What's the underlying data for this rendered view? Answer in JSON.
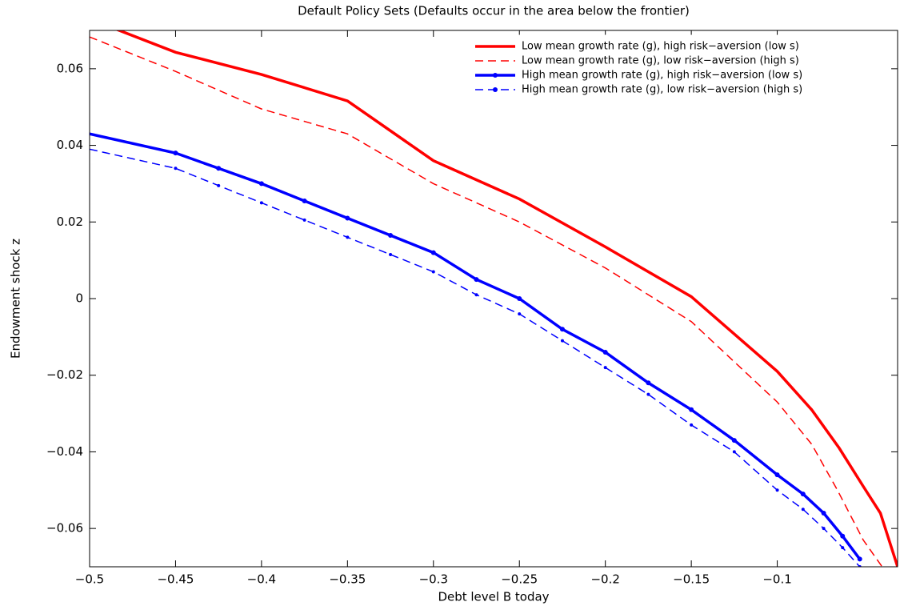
{
  "chart_data": {
    "type": "line",
    "title": "Default Policy Sets (Defaults occur in the area below the frontier)",
    "xlabel": "Debt level B today",
    "ylabel": "Endowment shock z",
    "xlim": [
      -0.5,
      -0.03
    ],
    "ylim": [
      -0.07,
      0.07
    ],
    "xticks": [
      {
        "value": -0.5,
        "label": "−0.5"
      },
      {
        "value": -0.45,
        "label": "−0.45"
      },
      {
        "value": -0.4,
        "label": "−0.4"
      },
      {
        "value": -0.35,
        "label": "−0.35"
      },
      {
        "value": -0.3,
        "label": "−0.3"
      },
      {
        "value": -0.25,
        "label": "−0.25"
      },
      {
        "value": -0.2,
        "label": "−0.2"
      },
      {
        "value": -0.15,
        "label": "−0.15"
      },
      {
        "value": -0.1,
        "label": "−0.1"
      }
    ],
    "yticks": [
      {
        "value": -0.06,
        "label": "−0.06"
      },
      {
        "value": -0.04,
        "label": "−0.04"
      },
      {
        "value": -0.02,
        "label": "−0.02"
      },
      0,
      0.02,
      0.04,
      0.06
    ],
    "legend": "upper right",
    "series": [
      {
        "name": "Low mean growth rate (g), high risk−aversion (low s)",
        "color": "#ff0000",
        "dash": false,
        "marker": false,
        "x": [
          -0.5,
          -0.45,
          -0.4,
          -0.35,
          -0.3,
          -0.25,
          -0.2,
          -0.15,
          -0.1,
          -0.08,
          -0.064,
          -0.05,
          -0.04,
          -0.03
        ],
        "values": [
          0.073,
          0.0643,
          0.0585,
          0.0516,
          0.036,
          0.026,
          0.0135,
          0.0005,
          -0.019,
          -0.029,
          -0.039,
          -0.049,
          -0.056,
          -0.07
        ]
      },
      {
        "name": "Low mean growth rate (g), low risk−aversion (high s)",
        "color": "#ff0000",
        "dash": true,
        "marker": false,
        "x": [
          -0.5,
          -0.45,
          -0.4,
          -0.35,
          -0.3,
          -0.25,
          -0.2,
          -0.15,
          -0.1,
          -0.08,
          -0.065,
          -0.05,
          -0.039
        ],
        "values": [
          0.0683,
          0.0593,
          0.0495,
          0.043,
          0.03,
          0.02,
          0.008,
          -0.006,
          -0.027,
          -0.038,
          -0.05,
          -0.063,
          -0.07
        ]
      },
      {
        "name": "High mean growth rate (g), high risk−aversion (low s)",
        "color": "#0000ff",
        "dash": false,
        "marker": true,
        "x": [
          -0.5,
          -0.45,
          -0.425,
          -0.4,
          -0.375,
          -0.35,
          -0.325,
          -0.3,
          -0.275,
          -0.25,
          -0.225,
          -0.2,
          -0.175,
          -0.15,
          -0.125,
          -0.1,
          -0.085,
          -0.073,
          -0.062,
          -0.052
        ],
        "values": [
          0.043,
          0.038,
          0.034,
          0.03,
          0.0255,
          0.021,
          0.0165,
          0.012,
          0.005,
          0.0,
          -0.008,
          -0.014,
          -0.022,
          -0.029,
          -0.037,
          -0.046,
          -0.051,
          -0.056,
          -0.062,
          -0.068
        ]
      },
      {
        "name": "High mean growth rate (g), low risk−aversion (high s)",
        "color": "#0000ff",
        "dash": true,
        "marker": true,
        "x": [
          -0.5,
          -0.45,
          -0.425,
          -0.4,
          -0.375,
          -0.35,
          -0.325,
          -0.3,
          -0.275,
          -0.25,
          -0.225,
          -0.2,
          -0.175,
          -0.15,
          -0.125,
          -0.1,
          -0.085,
          -0.073,
          -0.062,
          -0.052
        ],
        "values": [
          0.039,
          0.034,
          0.0295,
          0.025,
          0.0205,
          0.016,
          0.0115,
          0.007,
          0.001,
          -0.004,
          -0.011,
          -0.018,
          -0.025,
          -0.033,
          -0.04,
          -0.05,
          -0.055,
          -0.06,
          -0.065,
          -0.07
        ]
      }
    ]
  }
}
